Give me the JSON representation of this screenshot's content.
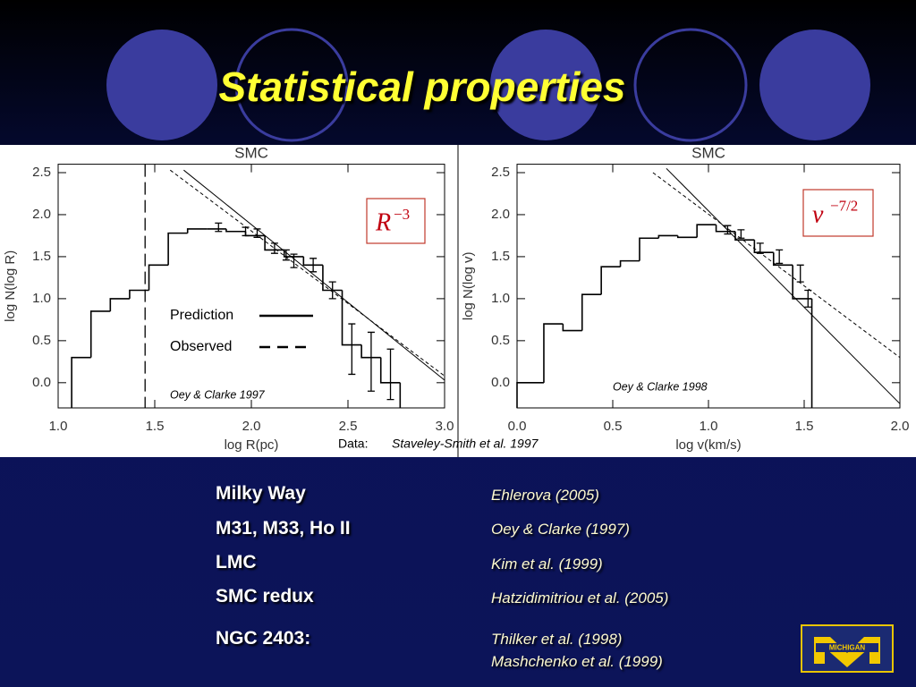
{
  "title": "Statistical properties",
  "data_credit": {
    "label": "Data:",
    "source": "Staveley-Smith  et al. 1997"
  },
  "chart_data": [
    {
      "type": "histogram",
      "title": "SMC",
      "xlabel": "log R(pc)",
      "ylabel": "log N(log R)",
      "xlim": [
        1.0,
        3.0
      ],
      "ylim": [
        -0.3,
        2.6
      ],
      "xticks": [
        {
          "value": 1.0,
          "label": "1.0"
        },
        1.5,
        {
          "value": 2.0,
          "label": "2.0"
        },
        2.5,
        {
          "value": 3.0,
          "label": "3.0"
        }
      ],
      "yticks": [
        {
          "value": 0,
          "label": "0.0"
        },
        0.5,
        {
          "value": 1.0,
          "label": "1.0"
        },
        1.5,
        {
          "value": 2.0,
          "label": "2.0"
        },
        2.5
      ],
      "color": "#000000",
      "bins": [
        1.07,
        1.17,
        1.27,
        1.37,
        1.47,
        1.57,
        1.67,
        1.77,
        1.87,
        1.97,
        2.07,
        2.17,
        2.27,
        2.37,
        2.47,
        2.57,
        2.67,
        2.77
      ],
      "values": [
        0.3,
        0.85,
        1.0,
        1.1,
        1.4,
        1.78,
        1.83,
        1.83,
        1.8,
        1.75,
        1.58,
        1.5,
        1.4,
        1.1,
        0.45,
        0.3,
        0.0
      ],
      "errorbars": {
        "x": [
          1.83,
          1.97,
          2.03,
          2.12,
          2.18,
          2.22,
          2.32,
          2.42,
          2.52,
          2.62,
          2.72
        ],
        "values": [
          1.85,
          1.8,
          1.78,
          1.6,
          1.52,
          1.45,
          1.4,
          1.1,
          0.4,
          0.25,
          0.1
        ],
        "errors": [
          0.05,
          0.05,
          0.05,
          0.06,
          0.06,
          0.08,
          0.08,
          0.1,
          0.3,
          0.35,
          0.3
        ]
      },
      "series": [
        {
          "name": "Prediction",
          "dash": "solid",
          "x": [
            1.65,
            3.0
          ],
          "values": [
            2.53,
            0.03
          ]
        },
        {
          "name": "Observed",
          "dash": "dashed",
          "x": [
            1.58,
            3.0
          ],
          "values": [
            2.53,
            0.08
          ]
        }
      ],
      "vlines": [
        1.45
      ],
      "annotation": {
        "base": "R",
        "sup": "−3"
      },
      "note": "Oey & Clarke 1997"
    },
    {
      "type": "histogram",
      "title": "SMC",
      "xlabel": "log v(km/s)",
      "ylabel": "log N(log v)",
      "xlim": [
        0.0,
        2.0
      ],
      "ylim": [
        -0.3,
        2.6
      ],
      "xticks": [
        {
          "value": 0,
          "label": "0.0"
        },
        0.5,
        {
          "value": 1.0,
          "label": "1.0"
        },
        1.5,
        {
          "value": 2.0,
          "label": "2.0"
        }
      ],
      "yticks": [
        {
          "value": 0,
          "label": "0.0"
        },
        0.5,
        {
          "value": 1.0,
          "label": "1.0"
        },
        1.5,
        {
          "value": 2.0,
          "label": "2.0"
        },
        2.5
      ],
      "color": "#000000",
      "bins": [
        0.0,
        0.14,
        0.24,
        0.34,
        0.44,
        0.54,
        0.64,
        0.74,
        0.84,
        0.94,
        1.04,
        1.14,
        1.24,
        1.34,
        1.44,
        1.54
      ],
      "values": [
        0.0,
        0.7,
        0.62,
        1.05,
        1.38,
        1.45,
        1.72,
        1.75,
        1.73,
        1.88,
        1.8,
        1.7,
        1.55,
        1.4,
        1.0
      ],
      "errorbars": {
        "x": [
          1.1,
          1.17,
          1.27,
          1.37,
          1.48,
          1.52
        ],
        "values": [
          1.82,
          1.77,
          1.6,
          1.5,
          1.3,
          1.0
        ],
        "errors": [
          0.05,
          0.05,
          0.06,
          0.08,
          0.1,
          0.1
        ]
      },
      "series": [
        {
          "dash": "solid",
          "x": [
            0.78,
            2.0
          ],
          "values": [
            2.55,
            -0.25
          ]
        },
        {
          "dash": "dashed",
          "x": [
            0.71,
            2.0
          ],
          "values": [
            2.5,
            0.3
          ]
        }
      ],
      "annotation": {
        "base": "ν",
        "sup": "−7/2"
      },
      "note": "Oey & Clarke 1998"
    }
  ],
  "sources": [
    {
      "name": "Milky Way",
      "refs": [
        "Ehlerova (2005)"
      ]
    },
    {
      "name": "M31, M33, Ho II",
      "refs": [
        "Oey & Clarke (1997)"
      ]
    },
    {
      "name": "LMC",
      "refs": [
        "Kim  et al. (1999)"
      ]
    },
    {
      "name": "SMC redux",
      "refs": [
        "Hatzidimitriou  et al. (2005)"
      ]
    },
    {
      "name": "NGC 2403:",
      "refs": [
        "Thilker  et al. (1998)",
        "Mashchenko  et al. (1999)"
      ]
    }
  ],
  "logo": {
    "text": "MICHIGAN"
  }
}
